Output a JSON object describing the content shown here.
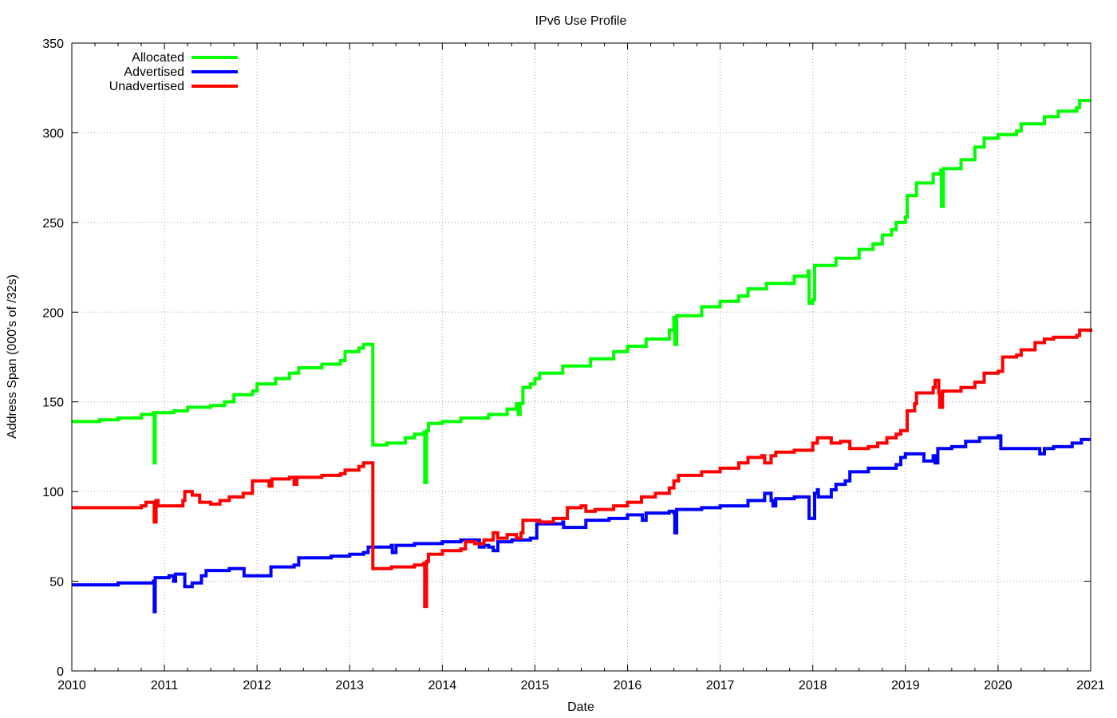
{
  "chart_data": {
    "type": "line",
    "title": "IPv6 Use Profile",
    "xlabel": "Date",
    "ylabel": "Address Span (000's of /32s)",
    "xlim": [
      2010,
      2021
    ],
    "ylim": [
      0,
      350
    ],
    "x_ticks": [
      "2010",
      "2011",
      "2012",
      "2013",
      "2014",
      "2015",
      "2016",
      "2017",
      "2018",
      "2019",
      "2020",
      "2021"
    ],
    "y_ticks": [
      "0",
      "50",
      "100",
      "150",
      "200",
      "250",
      "300",
      "350"
    ],
    "grid": true,
    "legend_position": "top-left",
    "series": [
      {
        "name": "Allocated",
        "color": "#00ff00",
        "points": [
          [
            2010.0,
            139
          ],
          [
            2010.3,
            140
          ],
          [
            2010.5,
            141
          ],
          [
            2010.72,
            141
          ],
          [
            2010.75,
            143
          ],
          [
            2010.88,
            144
          ],
          [
            2010.89,
            116
          ],
          [
            2010.9,
            144
          ],
          [
            2011.1,
            145
          ],
          [
            2011.25,
            147
          ],
          [
            2011.5,
            148
          ],
          [
            2011.65,
            150
          ],
          [
            2011.75,
            154
          ],
          [
            2011.95,
            156
          ],
          [
            2012.0,
            160
          ],
          [
            2012.15,
            160
          ],
          [
            2012.2,
            163
          ],
          [
            2012.35,
            166
          ],
          [
            2012.45,
            169
          ],
          [
            2012.7,
            171
          ],
          [
            2012.9,
            173
          ],
          [
            2012.95,
            178
          ],
          [
            2013.1,
            180
          ],
          [
            2013.15,
            182
          ],
          [
            2013.25,
            126
          ],
          [
            2013.4,
            127
          ],
          [
            2013.6,
            130
          ],
          [
            2013.7,
            132
          ],
          [
            2013.8,
            133
          ],
          [
            2013.81,
            105
          ],
          [
            2013.83,
            134
          ],
          [
            2013.85,
            138
          ],
          [
            2014.0,
            139
          ],
          [
            2014.2,
            141
          ],
          [
            2014.3,
            141
          ],
          [
            2014.5,
            143
          ],
          [
            2014.7,
            146
          ],
          [
            2014.8,
            149
          ],
          [
            2014.82,
            143
          ],
          [
            2014.84,
            149
          ],
          [
            2014.87,
            158
          ],
          [
            2014.95,
            160
          ],
          [
            2015.0,
            163
          ],
          [
            2015.05,
            166
          ],
          [
            2015.3,
            170
          ],
          [
            2015.6,
            174
          ],
          [
            2015.85,
            178
          ],
          [
            2016.0,
            181
          ],
          [
            2016.2,
            185
          ],
          [
            2016.45,
            190
          ],
          [
            2016.5,
            197
          ],
          [
            2016.51,
            182
          ],
          [
            2016.53,
            198
          ],
          [
            2016.8,
            203
          ],
          [
            2017.0,
            206
          ],
          [
            2017.2,
            209
          ],
          [
            2017.3,
            213
          ],
          [
            2017.5,
            216
          ],
          [
            2017.8,
            220
          ],
          [
            2017.95,
            223
          ],
          [
            2017.96,
            205
          ],
          [
            2018.0,
            207
          ],
          [
            2018.02,
            226
          ],
          [
            2018.25,
            230
          ],
          [
            2018.5,
            235
          ],
          [
            2018.65,
            238
          ],
          [
            2018.75,
            243
          ],
          [
            2018.85,
            246
          ],
          [
            2018.9,
            250
          ],
          [
            2019.0,
            253
          ],
          [
            2019.02,
            265
          ],
          [
            2019.12,
            272
          ],
          [
            2019.3,
            277
          ],
          [
            2019.38,
            279
          ],
          [
            2019.39,
            259
          ],
          [
            2019.41,
            280
          ],
          [
            2019.6,
            285
          ],
          [
            2019.75,
            292
          ],
          [
            2019.85,
            297
          ],
          [
            2020.0,
            299
          ],
          [
            2020.2,
            301
          ],
          [
            2020.25,
            305
          ],
          [
            2020.5,
            309
          ],
          [
            2020.65,
            312
          ],
          [
            2020.85,
            314
          ],
          [
            2020.88,
            318
          ],
          [
            2021.0,
            318
          ]
        ]
      },
      {
        "name": "Advertised",
        "color": "#0000ff",
        "points": [
          [
            2010.0,
            48
          ],
          [
            2010.5,
            49
          ],
          [
            2010.85,
            49
          ],
          [
            2010.88,
            50
          ],
          [
            2010.89,
            33
          ],
          [
            2010.9,
            52
          ],
          [
            2011.05,
            53
          ],
          [
            2011.1,
            50
          ],
          [
            2011.12,
            54
          ],
          [
            2011.2,
            54
          ],
          [
            2011.22,
            47
          ],
          [
            2011.3,
            49
          ],
          [
            2011.4,
            53
          ],
          [
            2011.45,
            56
          ],
          [
            2011.7,
            57
          ],
          [
            2011.85,
            57
          ],
          [
            2011.86,
            53
          ],
          [
            2012.0,
            53
          ],
          [
            2012.12,
            53
          ],
          [
            2012.15,
            58
          ],
          [
            2012.4,
            59
          ],
          [
            2012.45,
            63
          ],
          [
            2012.8,
            64
          ],
          [
            2013.0,
            65
          ],
          [
            2013.15,
            66
          ],
          [
            2013.2,
            69
          ],
          [
            2013.45,
            70
          ],
          [
            2013.46,
            66
          ],
          [
            2013.5,
            70
          ],
          [
            2013.7,
            71
          ],
          [
            2013.85,
            71
          ],
          [
            2014.0,
            72
          ],
          [
            2014.2,
            73
          ],
          [
            2014.35,
            73
          ],
          [
            2014.4,
            69
          ],
          [
            2014.45,
            70
          ],
          [
            2014.5,
            69
          ],
          [
            2014.55,
            67
          ],
          [
            2014.6,
            72
          ],
          [
            2014.75,
            73
          ],
          [
            2014.95,
            74
          ],
          [
            2015.0,
            74
          ],
          [
            2015.02,
            82
          ],
          [
            2015.3,
            83
          ],
          [
            2015.31,
            80
          ],
          [
            2015.5,
            80
          ],
          [
            2015.55,
            84
          ],
          [
            2015.8,
            85
          ],
          [
            2016.0,
            87
          ],
          [
            2016.15,
            87
          ],
          [
            2016.16,
            84
          ],
          [
            2016.2,
            88
          ],
          [
            2016.45,
            89
          ],
          [
            2016.5,
            88
          ],
          [
            2016.51,
            77
          ],
          [
            2016.53,
            90
          ],
          [
            2016.8,
            91
          ],
          [
            2017.0,
            92
          ],
          [
            2017.3,
            95
          ],
          [
            2017.45,
            95
          ],
          [
            2017.48,
            99
          ],
          [
            2017.55,
            95
          ],
          [
            2017.57,
            92
          ],
          [
            2017.6,
            96
          ],
          [
            2017.8,
            97
          ],
          [
            2017.95,
            97
          ],
          [
            2017.96,
            85
          ],
          [
            2018.0,
            85
          ],
          [
            2018.02,
            99
          ],
          [
            2018.05,
            101
          ],
          [
            2018.06,
            97
          ],
          [
            2018.2,
            101
          ],
          [
            2018.25,
            104
          ],
          [
            2018.35,
            106
          ],
          [
            2018.4,
            111
          ],
          [
            2018.6,
            113
          ],
          [
            2018.8,
            113
          ],
          [
            2018.9,
            115
          ],
          [
            2018.95,
            119
          ],
          [
            2019.0,
            121
          ],
          [
            2019.2,
            117
          ],
          [
            2019.3,
            120
          ],
          [
            2019.32,
            116
          ],
          [
            2019.35,
            124
          ],
          [
            2019.5,
            125
          ],
          [
            2019.65,
            128
          ],
          [
            2019.8,
            130
          ],
          [
            2020.0,
            131
          ],
          [
            2020.03,
            124
          ],
          [
            2020.2,
            124
          ],
          [
            2020.4,
            124
          ],
          [
            2020.45,
            121
          ],
          [
            2020.5,
            124
          ],
          [
            2020.6,
            125
          ],
          [
            2020.8,
            127
          ],
          [
            2020.9,
            129
          ],
          [
            2021.0,
            129
          ]
        ]
      },
      {
        "name": "Unadvertised",
        "color": "#ff0000",
        "points": [
          [
            2010.0,
            91
          ],
          [
            2010.3,
            91
          ],
          [
            2010.75,
            92
          ],
          [
            2010.8,
            94
          ],
          [
            2010.88,
            94
          ],
          [
            2010.89,
            83
          ],
          [
            2010.91,
            95
          ],
          [
            2010.93,
            92
          ],
          [
            2011.1,
            92
          ],
          [
            2011.2,
            95
          ],
          [
            2011.22,
            100
          ],
          [
            2011.3,
            98
          ],
          [
            2011.38,
            94
          ],
          [
            2011.5,
            93
          ],
          [
            2011.6,
            95
          ],
          [
            2011.7,
            97
          ],
          [
            2011.85,
            99
          ],
          [
            2011.95,
            106
          ],
          [
            2012.1,
            106
          ],
          [
            2012.13,
            103
          ],
          [
            2012.16,
            107
          ],
          [
            2012.35,
            108
          ],
          [
            2012.4,
            104
          ],
          [
            2012.43,
            108
          ],
          [
            2012.7,
            109
          ],
          [
            2012.9,
            110
          ],
          [
            2012.95,
            112
          ],
          [
            2013.1,
            114
          ],
          [
            2013.15,
            116
          ],
          [
            2013.25,
            57
          ],
          [
            2013.45,
            58
          ],
          [
            2013.6,
            58
          ],
          [
            2013.7,
            59
          ],
          [
            2013.8,
            60
          ],
          [
            2013.81,
            36
          ],
          [
            2013.83,
            61
          ],
          [
            2013.85,
            65
          ],
          [
            2014.0,
            67
          ],
          [
            2014.2,
            68
          ],
          [
            2014.25,
            72
          ],
          [
            2014.35,
            71
          ],
          [
            2014.45,
            73
          ],
          [
            2014.55,
            77
          ],
          [
            2014.6,
            74
          ],
          [
            2014.7,
            76
          ],
          [
            2014.8,
            74
          ],
          [
            2014.85,
            77
          ],
          [
            2014.87,
            84
          ],
          [
            2015.0,
            84
          ],
          [
            2015.05,
            83
          ],
          [
            2015.2,
            85
          ],
          [
            2015.35,
            91
          ],
          [
            2015.5,
            92
          ],
          [
            2015.55,
            89
          ],
          [
            2015.65,
            90
          ],
          [
            2015.85,
            92
          ],
          [
            2016.0,
            94
          ],
          [
            2016.15,
            97
          ],
          [
            2016.3,
            99
          ],
          [
            2016.45,
            102
          ],
          [
            2016.5,
            106
          ],
          [
            2016.55,
            109
          ],
          [
            2016.8,
            111
          ],
          [
            2017.0,
            113
          ],
          [
            2017.2,
            116
          ],
          [
            2017.3,
            119
          ],
          [
            2017.45,
            120
          ],
          [
            2017.48,
            116
          ],
          [
            2017.55,
            120
          ],
          [
            2017.6,
            122
          ],
          [
            2017.8,
            123
          ],
          [
            2017.95,
            123
          ],
          [
            2018.0,
            127
          ],
          [
            2018.05,
            130
          ],
          [
            2018.2,
            127
          ],
          [
            2018.3,
            128
          ],
          [
            2018.4,
            124
          ],
          [
            2018.6,
            125
          ],
          [
            2018.7,
            127
          ],
          [
            2018.8,
            130
          ],
          [
            2018.9,
            132
          ],
          [
            2018.95,
            134
          ],
          [
            2019.0,
            134
          ],
          [
            2019.02,
            145
          ],
          [
            2019.1,
            149
          ],
          [
            2019.12,
            155
          ],
          [
            2019.3,
            158
          ],
          [
            2019.32,
            162
          ],
          [
            2019.36,
            155
          ],
          [
            2019.37,
            147
          ],
          [
            2019.4,
            156
          ],
          [
            2019.6,
            158
          ],
          [
            2019.75,
            161
          ],
          [
            2019.85,
            166
          ],
          [
            2020.0,
            167
          ],
          [
            2020.05,
            175
          ],
          [
            2020.2,
            176
          ],
          [
            2020.25,
            179
          ],
          [
            2020.4,
            183
          ],
          [
            2020.5,
            185
          ],
          [
            2020.6,
            186
          ],
          [
            2020.85,
            187
          ],
          [
            2020.88,
            190
          ],
          [
            2021.0,
            189
          ]
        ]
      }
    ]
  }
}
